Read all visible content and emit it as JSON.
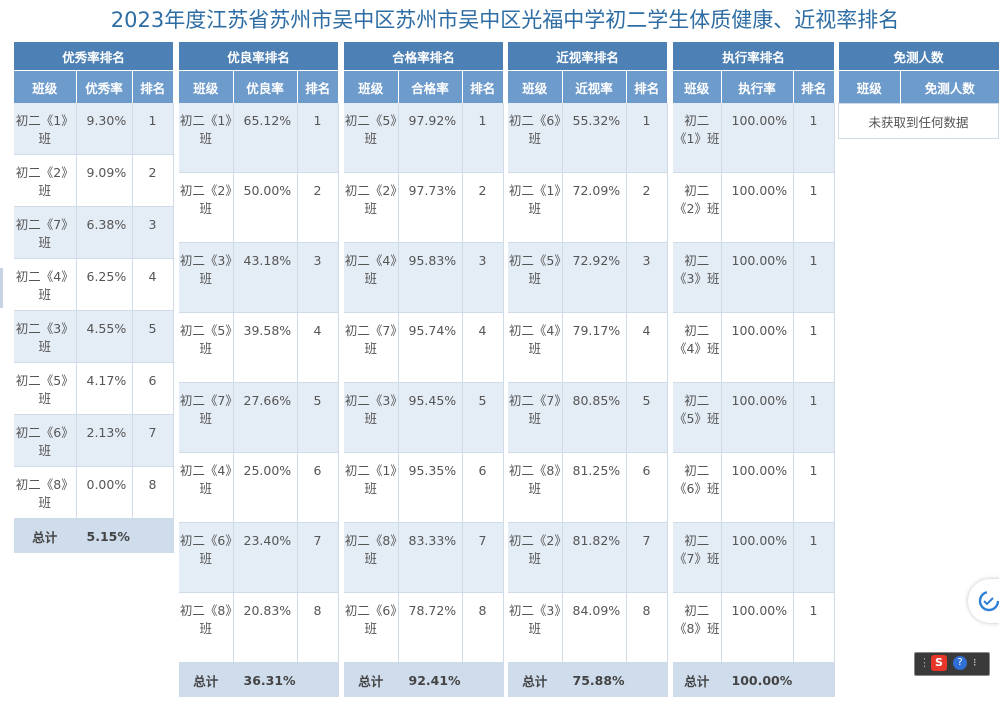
{
  "page": {
    "title": "2023年度江苏省苏州市吴中区苏州市吴中区光福中学初二学生体质健康、近视率排名"
  },
  "colors": {
    "group_header": "#4d80b4",
    "column_header": "#6d9bcc",
    "row_alt": "#e4ecf6",
    "total_row": "#cfdcec",
    "title": "#2e6da4"
  },
  "panels": [
    {
      "id": "excellent",
      "title": "优秀率排名",
      "cols": [
        "班级",
        "优秀率",
        "排名"
      ],
      "rows": [
        {
          "cls": "初二《1》班",
          "val": "9.30%",
          "rank": "1"
        },
        {
          "cls": "初二《2》班",
          "val": "9.09%",
          "rank": "2"
        },
        {
          "cls": "初二《7》班",
          "val": "6.38%",
          "rank": "3"
        },
        {
          "cls": "初二《4》班",
          "val": "6.25%",
          "rank": "4"
        },
        {
          "cls": "初二《3》班",
          "val": "4.55%",
          "rank": "5"
        },
        {
          "cls": "初二《5》班",
          "val": "4.17%",
          "rank": "6"
        },
        {
          "cls": "初二《6》班",
          "val": "2.13%",
          "rank": "7"
        },
        {
          "cls": "初二《8》班",
          "val": "0.00%",
          "rank": "8"
        }
      ],
      "total_label": "总计",
      "total": "5.15%"
    },
    {
      "id": "good",
      "title": "优良率排名",
      "cols": [
        "班级",
        "优良率",
        "排名"
      ],
      "rows": [
        {
          "cls": "初二《1》班",
          "val": "65.12%",
          "rank": "1"
        },
        {
          "cls": "初二《2》班",
          "val": "50.00%",
          "rank": "2"
        },
        {
          "cls": "初二《3》班",
          "val": "43.18%",
          "rank": "3"
        },
        {
          "cls": "初二《5》班",
          "val": "39.58%",
          "rank": "4"
        },
        {
          "cls": "初二《7》班",
          "val": "27.66%",
          "rank": "5"
        },
        {
          "cls": "初二《4》班",
          "val": "25.00%",
          "rank": "6"
        },
        {
          "cls": "初二《6》班",
          "val": "23.40%",
          "rank": "7"
        },
        {
          "cls": "初二《8》班",
          "val": "20.83%",
          "rank": "8"
        }
      ],
      "total_label": "总计",
      "total": "36.31%"
    },
    {
      "id": "pass",
      "title": "合格率排名",
      "cols": [
        "班级",
        "合格率",
        "排名"
      ],
      "rows": [
        {
          "cls": "初二《5》班",
          "val": "97.92%",
          "rank": "1"
        },
        {
          "cls": "初二《2》班",
          "val": "97.73%",
          "rank": "2"
        },
        {
          "cls": "初二《4》班",
          "val": "95.83%",
          "rank": "3"
        },
        {
          "cls": "初二《7》班",
          "val": "95.74%",
          "rank": "4"
        },
        {
          "cls": "初二《3》班",
          "val": "95.45%",
          "rank": "5"
        },
        {
          "cls": "初二《1》班",
          "val": "95.35%",
          "rank": "6"
        },
        {
          "cls": "初二《8》班",
          "val": "83.33%",
          "rank": "7"
        },
        {
          "cls": "初二《6》班",
          "val": "78.72%",
          "rank": "8"
        }
      ],
      "total_label": "总计",
      "total": "92.41%"
    },
    {
      "id": "myopia",
      "title": "近视率排名",
      "cols": [
        "班级",
        "近视率",
        "排名"
      ],
      "rows": [
        {
          "cls": "初二《6》班",
          "val": "55.32%",
          "rank": "1"
        },
        {
          "cls": "初二《1》班",
          "val": "72.09%",
          "rank": "2"
        },
        {
          "cls": "初二《5》班",
          "val": "72.92%",
          "rank": "3"
        },
        {
          "cls": "初二《4》班",
          "val": "79.17%",
          "rank": "4"
        },
        {
          "cls": "初二《7》班",
          "val": "80.85%",
          "rank": "5"
        },
        {
          "cls": "初二《8》班",
          "val": "81.25%",
          "rank": "6"
        },
        {
          "cls": "初二《2》班",
          "val": "81.82%",
          "rank": "7"
        },
        {
          "cls": "初二《3》班",
          "val": "84.09%",
          "rank": "8"
        }
      ],
      "total_label": "总计",
      "total": "75.88%"
    },
    {
      "id": "execution",
      "title": "执行率排名",
      "cols": [
        "班级",
        "执行率",
        "排名"
      ],
      "rows": [
        {
          "cls": "初二《1》班",
          "val": "100.00%",
          "rank": "1"
        },
        {
          "cls": "初二《2》班",
          "val": "100.00%",
          "rank": "1"
        },
        {
          "cls": "初二《3》班",
          "val": "100.00%",
          "rank": "1"
        },
        {
          "cls": "初二《4》班",
          "val": "100.00%",
          "rank": "1"
        },
        {
          "cls": "初二《5》班",
          "val": "100.00%",
          "rank": "1"
        },
        {
          "cls": "初二《6》班",
          "val": "100.00%",
          "rank": "1"
        },
        {
          "cls": "初二《7》班",
          "val": "100.00%",
          "rank": "1"
        },
        {
          "cls": "初二《8》班",
          "val": "100.00%",
          "rank": "1"
        }
      ],
      "total_label": "总计",
      "total": "100.00%"
    }
  ],
  "exempt": {
    "title": "免测人数",
    "cols": [
      "班级",
      "免测人数"
    ],
    "empty_text": "未获取到任何数据"
  },
  "ime_toolbar": {
    "icons": [
      "ime-s-icon",
      "help-icon",
      "menu-icon"
    ]
  }
}
